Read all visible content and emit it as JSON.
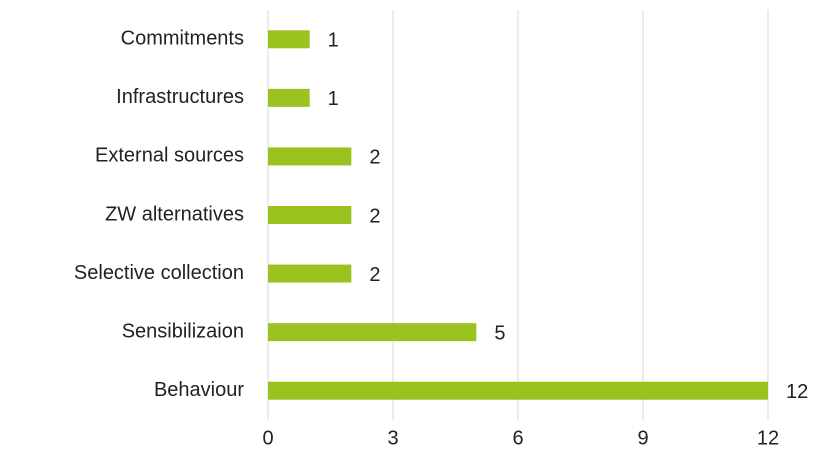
{
  "chart_data": {
    "type": "hbar",
    "categories": [
      "Commitments",
      "Infrastructures",
      "External sources",
      "ZW alternatives",
      "Selective collection",
      "Sensibilizaion",
      "Behaviour"
    ],
    "values": [
      1,
      1,
      2,
      2,
      2,
      5,
      12
    ],
    "color": "#9bc31f",
    "xlim": [
      0,
      12
    ],
    "xticks": [
      0,
      3,
      6,
      9,
      12
    ],
    "grid": true
  }
}
